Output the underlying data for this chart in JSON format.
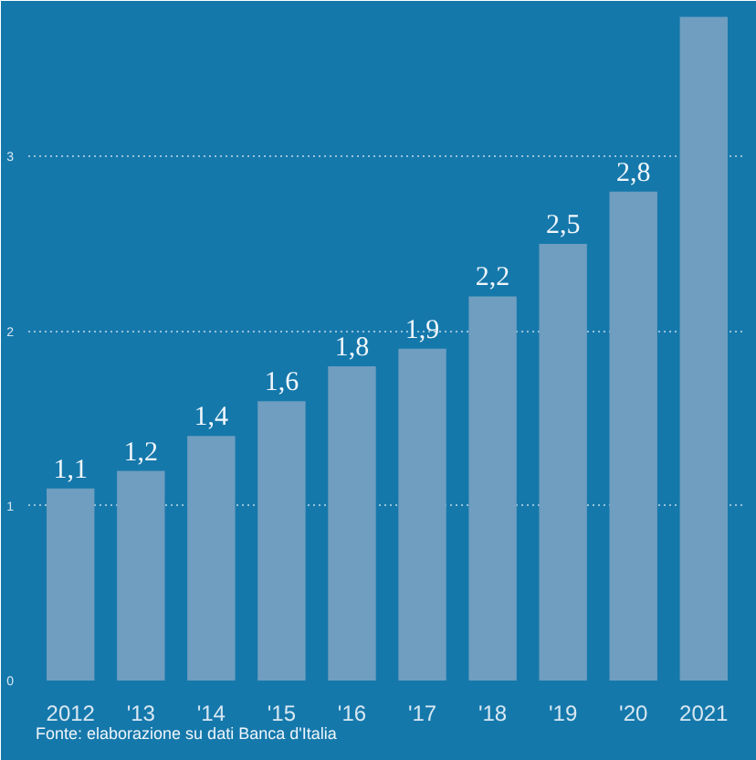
{
  "chart_data": {
    "type": "bar",
    "categories": [
      "2012",
      "'13",
      "'14",
      "'15",
      "'16",
      "'17",
      "'18",
      "'19",
      "'20",
      "2021"
    ],
    "values": [
      1.1,
      1.2,
      1.4,
      1.6,
      1.8,
      1.9,
      2.2,
      2.5,
      2.8,
      3.8
    ],
    "value_labels": [
      "1,1",
      "1,2",
      "1,4",
      "1,6",
      "1,8",
      "1,9",
      "2,2",
      "2,5",
      "2,8",
      null
    ],
    "color": "#6f9ec0",
    "ylim": [
      0,
      3.85
    ],
    "yticks": [
      0,
      1,
      2,
      3
    ],
    "grid": "y",
    "annotations": [
      "Fonte: elaborazione su dati Banca d'Italia"
    ]
  }
}
